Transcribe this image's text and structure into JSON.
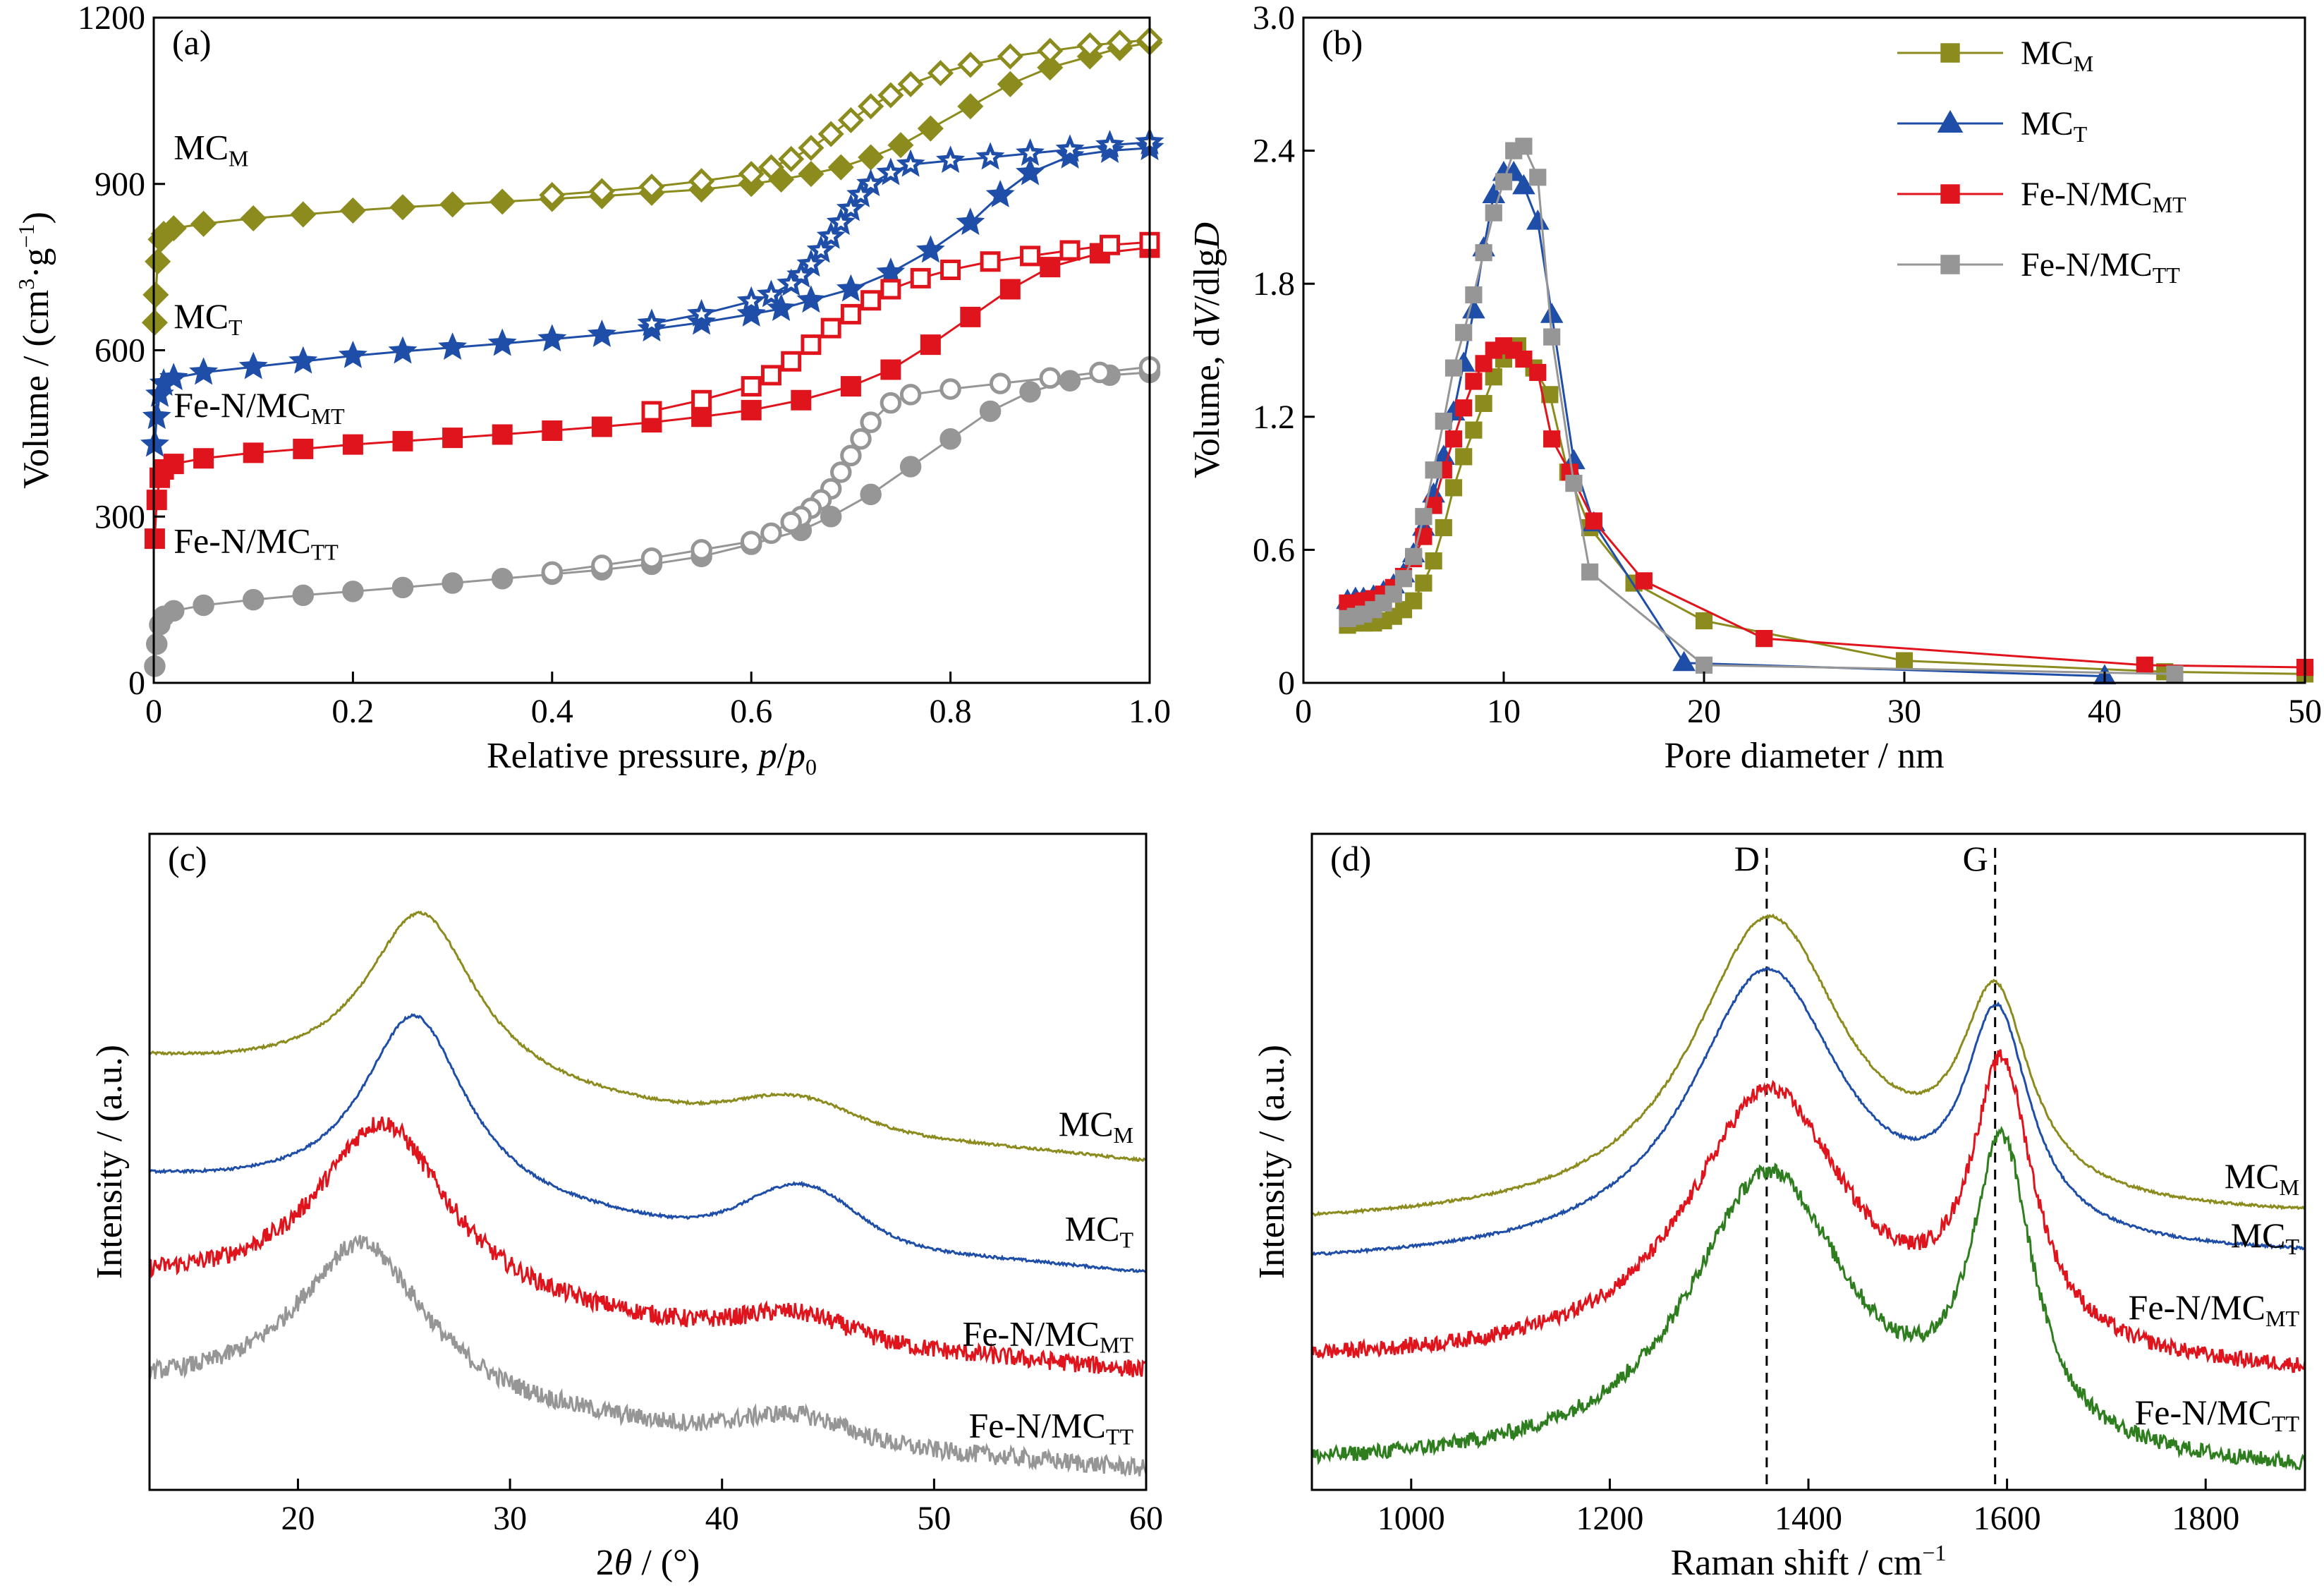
{
  "chart_data": [
    {
      "id": "a",
      "type": "line",
      "panel_label": "(a)",
      "xlabel_prefix": "Relative pressure, ",
      "xlabel_p": "p",
      "xlabel_slash": "/",
      "xlabel_p0": "p",
      "xlabel_p0_sub": "0",
      "ylabel_main": "Volume / (cm",
      "ylabel_sup1": "3",
      "ylabel_mid": "·g",
      "ylabel_sup2": "−1",
      "ylabel_end": ")",
      "xlim": [
        0,
        1.0
      ],
      "ylim": [
        0,
        1200
      ],
      "xticks": [
        "0",
        "0.2",
        "0.4",
        "0.6",
        "0.8",
        "1.0"
      ],
      "yticks": [
        "0",
        "300",
        "600",
        "900",
        "1200"
      ],
      "xtick_values": [
        0,
        0.2,
        0.4,
        0.6,
        0.8,
        1.0
      ],
      "ytick_values": [
        0,
        300,
        600,
        900,
        1200
      ],
      "series": [
        {
          "label_main": "MC",
          "label_sub": "M",
          "color": "#8B8B1E",
          "marker": "diamond",
          "label_pos": [
            0.02,
            945
          ],
          "adsorption": {
            "x": [
              0.001,
              0.002,
              0.004,
              0.007,
              0.01,
              0.02,
              0.05,
              0.1,
              0.15,
              0.2,
              0.25,
              0.3,
              0.35,
              0.4,
              0.45,
              0.5,
              0.55,
              0.6,
              0.63,
              0.66,
              0.69,
              0.72,
              0.75,
              0.78,
              0.82,
              0.86,
              0.9,
              0.94,
              0.97,
              1.0
            ],
            "y": [
              650,
              700,
              760,
              800,
              810,
              820,
              828,
              838,
              845,
              852,
              858,
              863,
              868,
              873,
              878,
              884,
              890,
              900,
              908,
              918,
              930,
              948,
              970,
              1000,
              1040,
              1080,
              1110,
              1130,
              1145,
              1155
            ]
          },
          "desorption": {
            "x": [
              1.0,
              0.97,
              0.94,
              0.9,
              0.86,
              0.82,
              0.79,
              0.76,
              0.74,
              0.72,
              0.7,
              0.68,
              0.66,
              0.64,
              0.62,
              0.6,
              0.55,
              0.5,
              0.45,
              0.4
            ],
            "y": [
              1160,
              1155,
              1150,
              1140,
              1130,
              1115,
              1100,
              1080,
              1060,
              1040,
              1015,
              990,
              965,
              945,
              930,
              918,
              905,
              895,
              887,
              880
            ]
          }
        },
        {
          "label_main": "MC",
          "label_sub": "T",
          "color": "#1F4EA8",
          "marker": "star",
          "label_pos": [
            0.02,
            640
          ],
          "adsorption": {
            "x": [
              0.001,
              0.003,
              0.006,
              0.01,
              0.02,
              0.05,
              0.1,
              0.15,
              0.2,
              0.25,
              0.3,
              0.35,
              0.4,
              0.45,
              0.5,
              0.55,
              0.6,
              0.63,
              0.66,
              0.7,
              0.74,
              0.78,
              0.82,
              0.85,
              0.88,
              0.92,
              0.96,
              1.0
            ],
            "y": [
              430,
              480,
              520,
              540,
              550,
              560,
              570,
              580,
              590,
              598,
              605,
              612,
              620,
              628,
              638,
              650,
              665,
              675,
              690,
              710,
              740,
              780,
              830,
              880,
              920,
              950,
              960,
              965
            ]
          },
          "desorption": {
            "x": [
              1.0,
              0.96,
              0.92,
              0.88,
              0.84,
              0.8,
              0.76,
              0.74,
              0.72,
              0.71,
              0.7,
              0.69,
              0.68,
              0.67,
              0.66,
              0.65,
              0.64,
              0.62,
              0.6,
              0.55,
              0.5
            ],
            "y": [
              975,
              970,
              962,
              955,
              948,
              942,
              935,
              920,
              900,
              880,
              855,
              830,
              805,
              780,
              755,
              735,
              720,
              700,
              688,
              665,
              648
            ]
          }
        },
        {
          "label_main": "Fe-N/MC",
          "label_sub": "MT",
          "color": "#E0141C",
          "marker": "square",
          "label_pos": [
            0.02,
            480
          ],
          "adsorption": {
            "x": [
              0.001,
              0.003,
              0.006,
              0.01,
              0.02,
              0.05,
              0.1,
              0.15,
              0.2,
              0.25,
              0.3,
              0.35,
              0.4,
              0.45,
              0.5,
              0.55,
              0.6,
              0.65,
              0.7,
              0.74,
              0.78,
              0.82,
              0.86,
              0.9,
              0.95,
              1.0
            ],
            "y": [
              260,
              330,
              370,
              385,
              395,
              405,
              415,
              422,
              430,
              436,
              442,
              448,
              455,
              462,
              470,
              480,
              492,
              510,
              535,
              565,
              610,
              660,
              710,
              750,
              775,
              785
            ]
          },
          "desorption": {
            "x": [
              1.0,
              0.96,
              0.92,
              0.88,
              0.84,
              0.8,
              0.77,
              0.74,
              0.72,
              0.7,
              0.68,
              0.66,
              0.64,
              0.62,
              0.6,
              0.55,
              0.5
            ],
            "y": [
              795,
              790,
              780,
              770,
              760,
              745,
              730,
              710,
              690,
              665,
              640,
              610,
              580,
              555,
              535,
              510,
              490
            ]
          }
        },
        {
          "label_main": "Fe-N/MC",
          "label_sub": "TT",
          "color": "#969696",
          "marker": "circle",
          "label_pos": [
            0.02,
            235
          ],
          "adsorption": {
            "x": [
              0.001,
              0.003,
              0.006,
              0.01,
              0.02,
              0.05,
              0.1,
              0.15,
              0.2,
              0.25,
              0.3,
              0.35,
              0.4,
              0.45,
              0.5,
              0.55,
              0.6,
              0.65,
              0.68,
              0.72,
              0.76,
              0.8,
              0.84,
              0.88,
              0.92,
              0.96,
              1.0
            ],
            "y": [
              30,
              70,
              105,
              120,
              130,
              140,
              150,
              158,
              165,
              172,
              180,
              188,
              196,
              204,
              214,
              228,
              250,
              275,
              300,
              340,
              390,
              440,
              490,
              525,
              545,
              555,
              560
            ]
          },
          "desorption": {
            "x": [
              1.0,
              0.95,
              0.9,
              0.85,
              0.8,
              0.76,
              0.74,
              0.72,
              0.71,
              0.7,
              0.69,
              0.68,
              0.67,
              0.66,
              0.65,
              0.64,
              0.62,
              0.6,
              0.55,
              0.5,
              0.45,
              0.4
            ],
            "y": [
              570,
              560,
              550,
              540,
              530,
              520,
              505,
              470,
              440,
              410,
              380,
              350,
              330,
              315,
              300,
              290,
              270,
              255,
              240,
              225,
              212,
              200
            ]
          }
        }
      ]
    },
    {
      "id": "b",
      "type": "line",
      "panel_label": "(b)",
      "xlabel": "Pore diameter / nm",
      "ylabel_pre": "Volume, d",
      "ylabel_V": "V",
      "ylabel_mid": "/dlg",
      "ylabel_D": "D",
      "xlim": [
        0,
        50
      ],
      "ylim": [
        0,
        3.0
      ],
      "xticks": [
        "0",
        "10",
        "20",
        "30",
        "40",
        "50"
      ],
      "yticks": [
        "0",
        "0.6",
        "1.2",
        "1.8",
        "2.4",
        "3.0"
      ],
      "xtick_values": [
        0,
        10,
        20,
        30,
        40,
        50
      ],
      "ytick_values": [
        0,
        0.6,
        1.2,
        1.8,
        2.4,
        3.0
      ],
      "legend": "top-right",
      "series": [
        {
          "label_main": "MC",
          "label_sub": "M",
          "color": "#8B8B1E",
          "marker": "square",
          "x": [
            2.2,
            2.6,
            3.0,
            3.5,
            4.0,
            4.5,
            5.0,
            5.5,
            6.0,
            6.5,
            7.0,
            7.5,
            8.0,
            8.5,
            9.0,
            9.5,
            10.0,
            10.7,
            11.5,
            12.3,
            13.2,
            14.3,
            16.5,
            20.0,
            30.0,
            43.0,
            50.0
          ],
          "y": [
            0.26,
            0.27,
            0.27,
            0.27,
            0.28,
            0.3,
            0.33,
            0.37,
            0.45,
            0.55,
            0.7,
            0.88,
            1.02,
            1.14,
            1.26,
            1.38,
            1.46,
            1.52,
            1.42,
            1.3,
            0.95,
            0.7,
            0.45,
            0.28,
            0.1,
            0.05,
            0.04
          ]
        },
        {
          "label_main": "MC",
          "label_sub": "T",
          "color": "#1F4EA8",
          "marker": "triangle",
          "x": [
            2.2,
            2.6,
            3.0,
            3.5,
            4.0,
            4.5,
            5.0,
            5.5,
            6.0,
            6.5,
            7.0,
            7.5,
            8.0,
            8.5,
            9.0,
            9.5,
            10.0,
            10.5,
            11.0,
            11.7,
            12.4,
            13.5,
            14.5,
            19.0,
            40.0
          ],
          "y": [
            0.37,
            0.38,
            0.38,
            0.39,
            0.41,
            0.44,
            0.49,
            0.58,
            0.7,
            0.85,
            1.02,
            1.22,
            1.44,
            1.68,
            1.96,
            2.2,
            2.3,
            2.3,
            2.24,
            2.08,
            1.66,
            1.0,
            0.72,
            0.09,
            0.03
          ]
        },
        {
          "label_main": "Fe-N/MC",
          "label_sub": "MT",
          "color": "#E0141C",
          "marker": "square",
          "x": [
            2.2,
            2.6,
            3.0,
            3.5,
            4.0,
            4.5,
            5.0,
            5.5,
            6.0,
            6.5,
            7.0,
            7.5,
            8.0,
            8.5,
            9.0,
            9.5,
            10.0,
            10.5,
            11.0,
            11.7,
            12.4,
            13.3,
            14.5,
            17.0,
            23.0,
            42.0,
            50.0
          ],
          "y": [
            0.36,
            0.36,
            0.37,
            0.38,
            0.4,
            0.43,
            0.48,
            0.56,
            0.66,
            0.8,
            0.96,
            1.1,
            1.24,
            1.36,
            1.44,
            1.5,
            1.52,
            1.5,
            1.46,
            1.4,
            1.1,
            0.95,
            0.73,
            0.46,
            0.2,
            0.08,
            0.07
          ]
        },
        {
          "label_main": "Fe-N/MC",
          "label_sub": "TT",
          "color": "#969696",
          "marker": "square",
          "x": [
            2.2,
            2.6,
            3.0,
            3.5,
            4.0,
            4.5,
            5.0,
            5.5,
            6.0,
            6.5,
            7.0,
            7.5,
            8.0,
            8.5,
            9.0,
            9.5,
            10.0,
            10.5,
            11.0,
            11.7,
            12.4,
            13.5,
            14.3,
            20.0,
            43.5
          ],
          "y": [
            0.29,
            0.3,
            0.31,
            0.33,
            0.36,
            0.4,
            0.47,
            0.57,
            0.75,
            0.96,
            1.18,
            1.42,
            1.58,
            1.75,
            1.94,
            2.12,
            2.26,
            2.4,
            2.42,
            2.28,
            1.56,
            0.9,
            0.5,
            0.08,
            0.04
          ]
        }
      ]
    },
    {
      "id": "c",
      "type": "line",
      "panel_label": "(c)",
      "xlabel_pre": "2",
      "xlabel_theta": "θ",
      "xlabel_post": " / (°)",
      "ylabel": "Intensity / (a.u.)",
      "xlim": [
        13,
        60
      ],
      "xticks": [
        "20",
        "30",
        "40",
        "50",
        "60"
      ],
      "xtick_values": [
        20,
        30,
        40,
        50,
        60
      ],
      "series": [
        {
          "label_main": "MC",
          "label_sub": "M",
          "color": "#8B8B1E",
          "baseline": 0.65,
          "base_end": 0.5,
          "peak1": [
            25.8,
            3.2,
            0.27
          ],
          "peak2": [
            43.5,
            2.5,
            0.04
          ],
          "noise": 0.002,
          "label_y": 0.54
        },
        {
          "label_main": "MC",
          "label_sub": "T",
          "color": "#1F4EA8",
          "baseline": 0.47,
          "base_end": 0.33,
          "peak1": [
            25.5,
            3.0,
            0.29
          ],
          "peak2": [
            43.8,
            2.4,
            0.08
          ],
          "noise": 0.002,
          "label_y": 0.38
        },
        {
          "label_main": "Fe-N/MC",
          "label_sub": "MT",
          "color": "#E0141C",
          "baseline": 0.31,
          "base_end": 0.18,
          "peak1": [
            24.0,
            3.8,
            0.28
          ],
          "peak2": [
            43.5,
            2.4,
            0.035
          ],
          "noise": 0.014,
          "label_y": 0.22
        },
        {
          "label_main": "Fe-N/MC",
          "label_sub": "TT",
          "color": "#969696",
          "baseline": 0.15,
          "base_end": 0.03,
          "peak1": [
            23.0,
            3.8,
            0.25
          ],
          "peak2": [
            43.5,
            2.4,
            0.035
          ],
          "noise": 0.014,
          "label_y": 0.08
        }
      ]
    },
    {
      "id": "d",
      "type": "line",
      "panel_label": "(d)",
      "xlabel_pre": "Raman shift / cm",
      "xlabel_sup": "−1",
      "ylabel": "Intensity / (a.u.)",
      "xlim": [
        900,
        1900
      ],
      "xticks": [
        "1000",
        "1200",
        "1400",
        "1600",
        "1800"
      ],
      "xtick_values": [
        1000,
        1200,
        1400,
        1600,
        1800
      ],
      "band_labels": [
        {
          "text": "D",
          "x": 1358
        },
        {
          "text": "G",
          "x": 1588
        }
      ],
      "series": [
        {
          "label_main": "MC",
          "label_sub": "M",
          "color": "#8B8B1E",
          "baseline": 0.4,
          "base_end": 0.41,
          "D": [
            1360,
            95,
            0.46
          ],
          "G": [
            1588,
            42,
            0.3
          ],
          "noise": 0.002,
          "label_y": 0.46
        },
        {
          "label_main": "MC",
          "label_sub": "T",
          "color": "#1F4EA8",
          "baseline": 0.34,
          "base_end": 0.35,
          "D": [
            1358,
            95,
            0.44
          ],
          "G": [
            1590,
            40,
            0.33
          ],
          "noise": 0.002,
          "label_y": 0.37
        },
        {
          "label_main": "Fe-N/MC",
          "label_sub": "MT",
          "color": "#E0141C",
          "baseline": 0.19,
          "base_end": 0.17,
          "D": [
            1360,
            100,
            0.42
          ],
          "G": [
            1595,
            38,
            0.42
          ],
          "noise": 0.012,
          "label_y": 0.26
        },
        {
          "label_main": "Fe-N/MC",
          "label_sub": "TT",
          "color": "#2E7D1E",
          "baseline": 0.03,
          "base_end": 0.02,
          "D": [
            1360,
            100,
            0.45
          ],
          "G": [
            1595,
            38,
            0.45
          ],
          "noise": 0.012,
          "label_y": 0.1
        }
      ]
    }
  ]
}
